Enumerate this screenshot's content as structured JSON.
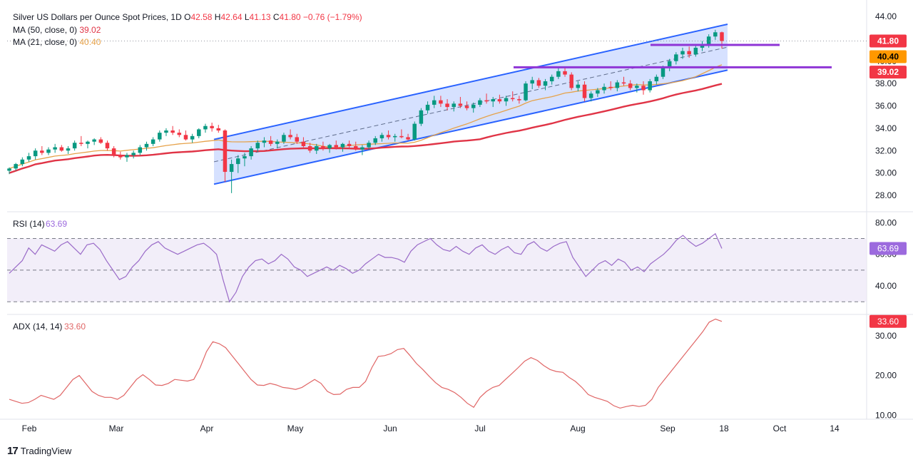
{
  "chart_data": {
    "type": "candlestick",
    "header": {
      "title": "Silver US Dollars per Ounce Spot Prices, 1D",
      "o_label": "O",
      "o": "42.58",
      "h_label": "H",
      "h": "42.64",
      "l_label": "L",
      "l": "41.13",
      "c_label": "C",
      "c": "41.80",
      "change": "−0.76 (−1.79%)",
      "ma50_label": "MA (50, close, 0)",
      "ma50_value": "39.02",
      "ma21_label": "MA (21, close, 0)",
      "ma21_value": "40.40"
    },
    "price_ticks": [
      "44.00",
      "42.00",
      "40.00",
      "38.00",
      "36.00",
      "34.00",
      "32.00",
      "30.00",
      "28.00"
    ],
    "price_badges": [
      {
        "value": "41.80",
        "color": "#f23645",
        "text_color": "#ffffff"
      },
      {
        "value": "40.40",
        "color": "#ff9800",
        "text_color": "#000000"
      },
      {
        "value": "39.02",
        "color": "#f23645",
        "text_color": "#ffffff"
      }
    ],
    "x_labels": [
      "Feb",
      "Mar",
      "Apr",
      "May",
      "Jun",
      "Jul",
      "Aug",
      "Sep",
      "18",
      "Oct",
      "14"
    ],
    "candles_approx": [
      [
        30.2,
        30.5,
        29.9,
        30.4
      ],
      [
        30.4,
        30.9,
        30.2,
        30.8
      ],
      [
        30.8,
        31.4,
        30.6,
        31.2
      ],
      [
        31.2,
        31.8,
        31.0,
        31.5
      ],
      [
        31.5,
        32.2,
        31.2,
        32.0
      ],
      [
        32.0,
        32.4,
        31.6,
        31.8
      ],
      [
        31.8,
        32.3,
        31.6,
        32.1
      ],
      [
        32.1,
        32.6,
        31.8,
        32.3
      ],
      [
        32.3,
        32.5,
        31.9,
        32.0
      ],
      [
        32.0,
        32.4,
        31.7,
        32.2
      ],
      [
        32.2,
        32.9,
        32.0,
        32.7
      ],
      [
        32.7,
        33.3,
        32.4,
        32.6
      ],
      [
        32.6,
        32.9,
        32.2,
        32.8
      ],
      [
        32.8,
        33.1,
        32.5,
        33.0
      ],
      [
        33.0,
        33.2,
        32.6,
        32.7
      ],
      [
        32.7,
        32.9,
        32.0,
        32.2
      ],
      [
        32.2,
        32.4,
        31.4,
        31.6
      ],
      [
        31.6,
        31.9,
        31.2,
        31.4
      ],
      [
        31.4,
        31.8,
        31.0,
        31.6
      ],
      [
        31.6,
        32.0,
        31.3,
        31.8
      ],
      [
        31.8,
        32.5,
        31.6,
        32.3
      ],
      [
        32.3,
        32.8,
        32.0,
        32.6
      ],
      [
        32.6,
        33.2,
        32.4,
        33.0
      ],
      [
        33.0,
        33.8,
        32.8,
        33.6
      ],
      [
        33.6,
        34.0,
        33.3,
        33.8
      ],
      [
        33.8,
        34.2,
        33.4,
        33.6
      ],
      [
        33.6,
        33.9,
        33.2,
        33.4
      ],
      [
        33.4,
        33.8,
        32.9,
        33.0
      ],
      [
        33.0,
        33.5,
        32.7,
        33.3
      ],
      [
        33.3,
        34.0,
        33.1,
        33.9
      ],
      [
        33.9,
        34.4,
        33.6,
        34.2
      ],
      [
        34.2,
        34.5,
        33.7,
        34.0
      ],
      [
        34.0,
        34.3,
        33.6,
        33.8
      ],
      [
        33.8,
        33.9,
        29.2,
        30.1
      ],
      [
        30.1,
        31.2,
        28.2,
        30.8
      ],
      [
        30.8,
        31.6,
        30.0,
        31.3
      ],
      [
        31.3,
        31.8,
        30.6,
        31.5
      ],
      [
        31.5,
        32.4,
        31.2,
        32.2
      ],
      [
        32.2,
        32.9,
        31.9,
        32.7
      ],
      [
        32.7,
        33.2,
        32.3,
        32.9
      ],
      [
        32.9,
        33.3,
        32.4,
        32.6
      ],
      [
        32.6,
        33.0,
        32.2,
        32.8
      ],
      [
        32.8,
        33.6,
        32.6,
        33.4
      ],
      [
        33.4,
        33.9,
        33.0,
        33.2
      ],
      [
        33.2,
        33.5,
        32.6,
        32.8
      ],
      [
        32.8,
        33.2,
        32.3,
        32.4
      ],
      [
        32.4,
        32.7,
        31.8,
        32.0
      ],
      [
        32.0,
        32.6,
        31.7,
        32.4
      ],
      [
        32.4,
        32.8,
        32.0,
        32.2
      ],
      [
        32.2,
        32.6,
        31.8,
        32.5
      ],
      [
        32.5,
        32.9,
        32.1,
        32.3
      ],
      [
        32.3,
        32.7,
        31.9,
        32.6
      ],
      [
        32.6,
        32.9,
        32.2,
        32.4
      ],
      [
        32.4,
        32.8,
        32.0,
        32.1
      ],
      [
        32.1,
        32.5,
        31.6,
        32.3
      ],
      [
        32.3,
        32.9,
        32.1,
        32.7
      ],
      [
        32.7,
        33.3,
        32.5,
        33.1
      ],
      [
        33.1,
        33.6,
        32.8,
        33.4
      ],
      [
        33.4,
        33.8,
        33.0,
        33.2
      ],
      [
        33.2,
        33.5,
        32.8,
        33.3
      ],
      [
        33.3,
        33.9,
        33.1,
        33.2
      ],
      [
        33.2,
        33.5,
        32.9,
        33.0
      ],
      [
        33.0,
        34.6,
        32.9,
        34.4
      ],
      [
        34.4,
        35.8,
        34.2,
        35.6
      ],
      [
        35.6,
        36.4,
        35.3,
        36.1
      ],
      [
        36.1,
        36.9,
        35.8,
        36.5
      ],
      [
        36.5,
        36.9,
        35.9,
        36.2
      ],
      [
        36.2,
        36.6,
        35.6,
        35.9
      ],
      [
        35.9,
        36.4,
        35.5,
        36.2
      ],
      [
        36.2,
        36.8,
        35.8,
        36.0
      ],
      [
        36.0,
        36.4,
        35.6,
        35.8
      ],
      [
        35.8,
        36.3,
        35.4,
        36.1
      ],
      [
        36.1,
        36.7,
        35.9,
        36.5
      ],
      [
        36.5,
        37.1,
        36.2,
        36.4
      ],
      [
        36.4,
        36.8,
        35.9,
        36.6
      ],
      [
        36.6,
        37.0,
        36.2,
        36.4
      ],
      [
        36.4,
        36.9,
        36.0,
        36.7
      ],
      [
        36.7,
        37.3,
        36.4,
        36.6
      ],
      [
        36.6,
        36.9,
        36.2,
        36.5
      ],
      [
        36.5,
        38.2,
        36.4,
        38.0
      ],
      [
        38.0,
        38.6,
        37.5,
        38.3
      ],
      [
        38.3,
        38.5,
        37.6,
        37.8
      ],
      [
        37.8,
        38.4,
        37.4,
        38.2
      ],
      [
        38.2,
        38.8,
        37.9,
        38.6
      ],
      [
        38.6,
        39.4,
        38.4,
        39.1
      ],
      [
        39.1,
        39.5,
        38.6,
        38.8
      ],
      [
        38.8,
        39.0,
        37.4,
        37.6
      ],
      [
        37.6,
        38.2,
        37.3,
        37.9
      ],
      [
        37.9,
        38.2,
        36.4,
        36.7
      ],
      [
        36.7,
        37.3,
        36.4,
        37.1
      ],
      [
        37.1,
        37.6,
        36.8,
        37.4
      ],
      [
        37.4,
        38.0,
        37.1,
        37.7
      ],
      [
        37.7,
        38.2,
        37.4,
        37.6
      ],
      [
        37.6,
        38.3,
        37.3,
        38.1
      ],
      [
        38.1,
        38.6,
        37.8,
        38.0
      ],
      [
        38.0,
        38.3,
        37.4,
        37.6
      ],
      [
        37.6,
        38.0,
        37.2,
        37.8
      ],
      [
        37.8,
        38.2,
        37.0,
        37.4
      ],
      [
        37.4,
        38.4,
        37.2,
        38.2
      ],
      [
        38.2,
        38.8,
        37.9,
        38.6
      ],
      [
        38.6,
        39.6,
        38.4,
        39.4
      ],
      [
        39.4,
        40.2,
        39.1,
        40.0
      ],
      [
        40.0,
        40.8,
        39.7,
        40.6
      ],
      [
        40.6,
        41.2,
        40.2,
        40.9
      ],
      [
        40.9,
        41.3,
        40.3,
        40.6
      ],
      [
        40.6,
        41.4,
        40.4,
        41.2
      ],
      [
        41.2,
        41.8,
        40.9,
        41.5
      ],
      [
        41.5,
        42.4,
        41.2,
        42.2
      ],
      [
        42.2,
        42.8,
        41.9,
        42.58
      ],
      [
        42.58,
        42.64,
        41.13,
        41.8
      ]
    ],
    "rsi": {
      "label": "RSI (14)",
      "value": "63.69",
      "ticks": [
        "80.00",
        "60.00",
        "40.00"
      ],
      "upper_band": 70,
      "mid_band": 50,
      "lower_band": 30,
      "ylim": [
        22,
        86
      ],
      "values": [
        48,
        52,
        56,
        64,
        60,
        66,
        64,
        62,
        66,
        68,
        64,
        60,
        66,
        67,
        63,
        56,
        50,
        44,
        46,
        52,
        56,
        62,
        66,
        68,
        64,
        62,
        60,
        62,
        64,
        66,
        67,
        64,
        60,
        44,
        30,
        36,
        46,
        52,
        56,
        57,
        54,
        56,
        60,
        57,
        52,
        50,
        46,
        48,
        50,
        52,
        50,
        53,
        51,
        48,
        50,
        54,
        57,
        60,
        58,
        58,
        57,
        55,
        62,
        66,
        68,
        70,
        66,
        63,
        62,
        65,
        62,
        60,
        64,
        66,
        62,
        60,
        63,
        65,
        61,
        60,
        66,
        68,
        64,
        62,
        65,
        67,
        68,
        58,
        52,
        46,
        50,
        54,
        56,
        53,
        57,
        55,
        50,
        52,
        49,
        54,
        57,
        60,
        64,
        69,
        72,
        68,
        65,
        67,
        70,
        73,
        63.69
      ]
    },
    "adx": {
      "label": "ADX (14, 14)",
      "value": "33.60",
      "ticks": [
        "30.00",
        "20.00",
        "10.00"
      ],
      "ylim": [
        9,
        35
      ],
      "values": [
        14,
        13.5,
        13,
        13.2,
        14,
        15,
        14.5,
        14,
        15,
        17,
        19,
        20,
        18,
        16,
        15,
        14.5,
        14.5,
        14,
        15,
        17,
        19,
        20.2,
        19,
        17.6,
        17.5,
        18,
        19,
        18.8,
        18.6,
        19,
        22,
        26,
        28.5,
        28,
        27,
        25,
        23,
        21,
        19,
        17.6,
        17.5,
        18,
        17.6,
        17,
        16.8,
        16.5,
        17,
        18,
        19,
        18,
        16,
        15.2,
        15.3,
        16.5,
        17,
        17,
        18.5,
        22,
        24.8,
        25,
        25.5,
        26.5,
        26.8,
        25,
        23,
        21.5,
        19.8,
        18.2,
        17,
        16.5,
        15.7,
        14.5,
        13,
        12,
        14.5,
        16,
        17,
        17.5,
        19,
        20.5,
        22,
        23.6,
        24.5,
        23.8,
        22.5,
        21.5,
        21,
        20.8,
        19.5,
        18.5,
        17,
        15.2,
        14.5,
        14,
        13.5,
        12.4,
        11.8,
        12.2,
        12.5,
        12.2,
        12.5,
        14,
        17,
        19,
        21,
        23,
        25,
        27,
        29,
        31,
        33.4,
        34.2,
        33.6
      ]
    }
  },
  "footer": {
    "logo": "17",
    "brand": "TradingView"
  },
  "colors": {
    "up": "#089981",
    "down": "#f23645",
    "channel_fill": "#cfdcff",
    "channel_line": "#2962ff",
    "ma50": "#e03446",
    "ma21": "#e6a24a",
    "resistance": "#8f35d6",
    "rsi_line": "#9a6bc8",
    "adx_line": "#e06666"
  }
}
